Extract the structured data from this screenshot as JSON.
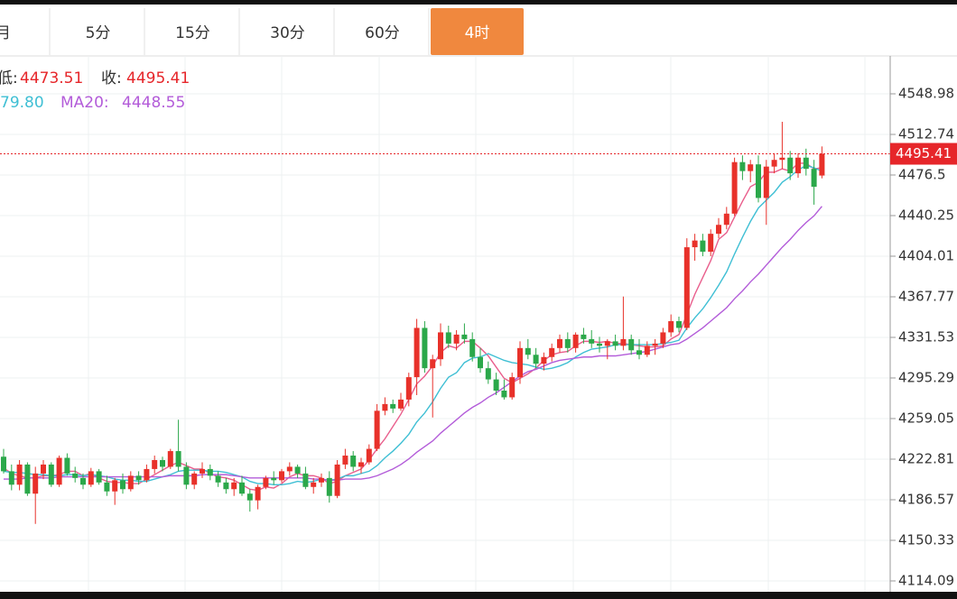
{
  "tabs": [
    {
      "label": "月"
    },
    {
      "label": "5分"
    },
    {
      "label": "15分"
    },
    {
      "label": "30分"
    },
    {
      "label": "60分"
    },
    {
      "label": "4时",
      "active": true
    }
  ],
  "chart_data": {
    "type": "candlestick",
    "info": [
      {
        "label": "低:",
        "value": 4473.51
      },
      {
        "label": "收:",
        "value": 4495.41
      }
    ],
    "ma_legend": [
      {
        "text": "79.80",
        "color": "#3fbfd4"
      },
      {
        "label": "MA20:",
        "value": 4448.55,
        "color": "#b35cd9"
      }
    ],
    "up_color": "#e8312a",
    "down_color": "#2ba84a",
    "last_price": 4495.41,
    "last_price_color": "#e6262a",
    "ylim": [
      4104.4,
      4582.8
    ],
    "yticks": [
      4548.98,
      4512.74,
      4476.5,
      4440.25,
      4404.01,
      4367.77,
      4331.53,
      4295.29,
      4259.05,
      4222.81,
      4186.57,
      4150.33,
      4114.09
    ],
    "grid": true,
    "open": [
      4225,
      4212,
      4200,
      4218,
      4192,
      4210,
      4218,
      4200,
      4224,
      4210,
      4206,
      4200,
      4212,
      4202,
      4194,
      4204,
      4196,
      4208,
      4204,
      4214,
      4222,
      4216,
      4230,
      4216,
      4200,
      4210,
      4214,
      4208,
      4202,
      4196,
      4202,
      4192,
      4186,
      4198,
      4206,
      4204,
      4212,
      4216,
      4210,
      4198,
      4202,
      4206,
      4190,
      4218,
      4226,
      4216,
      4220,
      4232,
      4266,
      4272,
      4268,
      4276,
      4296,
      4340,
      4304,
      4312,
      4336,
      4326,
      4334,
      4330,
      4314,
      4304,
      4294,
      4284,
      4278,
      4296,
      4322,
      4316,
      4308,
      4314,
      4322,
      4330,
      4322,
      4334,
      4330,
      4326,
      4324,
      4328,
      4324,
      4330,
      4320,
      4316,
      4324,
      4326,
      4336,
      4346,
      4340,
      4412,
      4418,
      4408,
      4424,
      4432,
      4442,
      4488,
      4480,
      4486,
      4456,
      4484,
      4490,
      4492,
      4478,
      4492,
      4482,
      4476
    ],
    "high": [
      4232,
      4218,
      4222,
      4220,
      4216,
      4222,
      4220,
      4226,
      4228,
      4216,
      4210,
      4215,
      4214,
      4208,
      4206,
      4210,
      4212,
      4212,
      4218,
      4226,
      4225,
      4232,
      4258,
      4220,
      4212,
      4220,
      4218,
      4212,
      4206,
      4206,
      4208,
      4196,
      4200,
      4208,
      4212,
      4214,
      4220,
      4218,
      4216,
      4206,
      4210,
      4212,
      4222,
      4232,
      4230,
      4224,
      4236,
      4272,
      4278,
      4276,
      4282,
      4300,
      4348,
      4346,
      4316,
      4344,
      4342,
      4338,
      4344,
      4336,
      4322,
      4310,
      4300,
      4294,
      4300,
      4328,
      4330,
      4322,
      4318,
      4326,
      4334,
      4336,
      4336,
      4340,
      4338,
      4332,
      4330,
      4334,
      4368,
      4334,
      4330,
      4328,
      4330,
      4340,
      4352,
      4350,
      4420,
      4424,
      4424,
      4428,
      4438,
      4448,
      4492,
      4494,
      4490,
      4494,
      4490,
      4496,
      4524,
      4498,
      4496,
      4500,
      4490,
      4502
    ],
    "low": [
      4210,
      4195,
      4195,
      4190,
      4165,
      4205,
      4198,
      4198,
      4208,
      4202,
      4196,
      4198,
      4200,
      4190,
      4182,
      4192,
      4194,
      4200,
      4202,
      4210,
      4212,
      4214,
      4212,
      4196,
      4196,
      4206,
      4204,
      4198,
      4192,
      4190,
      4190,
      4176,
      4178,
      4196,
      4200,
      4202,
      4208,
      4206,
      4196,
      4192,
      4198,
      4184,
      4188,
      4214,
      4212,
      4210,
      4218,
      4230,
      4262,
      4264,
      4266,
      4270,
      4280,
      4300,
      4260,
      4306,
      4322,
      4320,
      4326,
      4310,
      4300,
      4290,
      4280,
      4276,
      4276,
      4290,
      4312,
      4304,
      4302,
      4310,
      4318,
      4318,
      4318,
      4326,
      4322,
      4318,
      4312,
      4320,
      4320,
      4316,
      4312,
      4314,
      4316,
      4322,
      4332,
      4336,
      4338,
      4400,
      4404,
      4404,
      4420,
      4428,
      4440,
      4472,
      4470,
      4452,
      4432,
      4478,
      4482,
      4472,
      4474,
      4476,
      4450,
      4473.51
    ],
    "close": [
      4212,
      4200,
      4218,
      4192,
      4210,
      4218,
      4200,
      4224,
      4210,
      4206,
      4200,
      4212,
      4202,
      4194,
      4204,
      4196,
      4208,
      4204,
      4214,
      4222,
      4216,
      4230,
      4216,
      4200,
      4210,
      4214,
      4208,
      4202,
      4196,
      4202,
      4192,
      4186,
      4198,
      4206,
      4204,
      4212,
      4216,
      4210,
      4198,
      4202,
      4206,
      4190,
      4218,
      4226,
      4216,
      4220,
      4232,
      4266,
      4272,
      4268,
      4276,
      4296,
      4340,
      4304,
      4312,
      4336,
      4326,
      4334,
      4330,
      4314,
      4304,
      4294,
      4284,
      4278,
      4296,
      4322,
      4316,
      4308,
      4314,
      4322,
      4330,
      4322,
      4334,
      4330,
      4326,
      4324,
      4328,
      4324,
      4330,
      4320,
      4316,
      4324,
      4326,
      4336,
      4346,
      4340,
      4412,
      4418,
      4408,
      4424,
      4432,
      4442,
      4488,
      4480,
      4486,
      4456,
      4484,
      4490,
      4492,
      4478,
      4492,
      4482,
      4466,
      4495.41
    ],
    "lines": [
      {
        "color": "#e95e8c",
        "values": [
          4215,
          4210,
          4208,
          4206,
          4206,
          4208,
          4208,
          4209,
          4212,
          4212,
          4208,
          4210,
          4206,
          4203,
          4202,
          4202,
          4201,
          4201,
          4205,
          4209,
          4213,
          4217,
          4220,
          4217,
          4214,
          4214,
          4210,
          4207,
          4206,
          4204,
          4200,
          4196,
          4195,
          4198,
          4197,
          4201,
          4207,
          4210,
          4208,
          4208,
          4206,
          4201,
          4203,
          4208,
          4211,
          4214,
          4222,
          4232,
          4241,
          4252,
          4263,
          4276,
          4290,
          4297,
          4306,
          4318,
          4324,
          4322,
          4328,
          4328,
          4322,
          4315,
          4305,
          4295,
          4291,
          4295,
          4299,
          4304,
          4311,
          4316,
          4318,
          4319,
          4324,
          4328,
          4328,
          4327,
          4328,
          4326,
          4326,
          4325,
          4324,
          4323,
          4323,
          4324,
          4330,
          4334,
          4352,
          4370,
          4385,
          4400,
          4419,
          4425,
          4439,
          4453,
          4466,
          4470,
          4479,
          4479,
          4482,
          4480,
          4487,
          4487,
          4482,
          4483
        ]
      },
      {
        "color": "#3fbfd4",
        "values": [
          4212,
          4211,
          4211,
          4210,
          4209,
          4209,
          4208,
          4208,
          4209,
          4209,
          4208,
          4209,
          4208,
          4207,
          4205,
          4204,
          4204,
          4203,
          4203,
          4205,
          4207,
          4209,
          4212,
          4213,
          4213,
          4213,
          4212,
          4212,
          4211,
          4209,
          4207,
          4203,
          4201,
          4201,
          4200,
          4200,
          4201,
          4203,
          4202,
          4203,
          4205,
          4204,
          4205,
          4208,
          4208,
          4210,
          4212,
          4217,
          4224,
          4230,
          4237,
          4245,
          4256,
          4264,
          4274,
          4286,
          4296,
          4300,
          4309,
          4313,
          4314,
          4317,
          4314,
          4311,
          4309,
          4308,
          4307,
          4305,
          4303,
          4304,
          4306,
          4309,
          4314,
          4318,
          4321,
          4322,
          4323,
          4325,
          4325,
          4325,
          4325,
          4325,
          4325,
          4326,
          4327,
          4329,
          4340,
          4349,
          4357,
          4367,
          4378,
          4390,
          4406,
          4421,
          4435,
          4447,
          4454,
          4461,
          4470,
          4475,
          4481,
          4485,
          4483,
          4479.8
        ]
      },
      {
        "color": "#b35cd9",
        "values": [
          4205,
          4205,
          4205,
          4206,
          4206,
          4206,
          4206,
          4207,
          4207,
          4207,
          4207,
          4207,
          4207,
          4207,
          4207,
          4207,
          4207,
          4207,
          4207,
          4207,
          4207,
          4208,
          4208,
          4208,
          4208,
          4209,
          4209,
          4209,
          4209,
          4208,
          4207,
          4206,
          4206,
          4206,
          4206,
          4206,
          4206,
          4206,
          4206,
          4205,
          4205,
          4204,
          4204,
          4205,
          4205,
          4205,
          4206,
          4208,
          4211,
          4214,
          4218,
          4223,
          4229,
          4234,
          4239,
          4246,
          4252,
          4258,
          4264,
          4269,
          4273,
          4278,
          4282,
          4287,
          4292,
          4297,
          4301,
          4303,
          4306,
          4309,
          4311,
          4312,
          4313,
          4314,
          4314,
          4315,
          4315,
          4315,
          4316,
          4317,
          4318,
          4319,
          4321,
          4323,
          4325,
          4326,
          4330,
          4335,
          4340,
          4346,
          4352,
          4358,
          4366,
          4373,
          4381,
          4388,
          4396,
          4404,
          4412,
          4419,
          4427,
          4434,
          4440,
          4448.55
        ]
      }
    ]
  }
}
